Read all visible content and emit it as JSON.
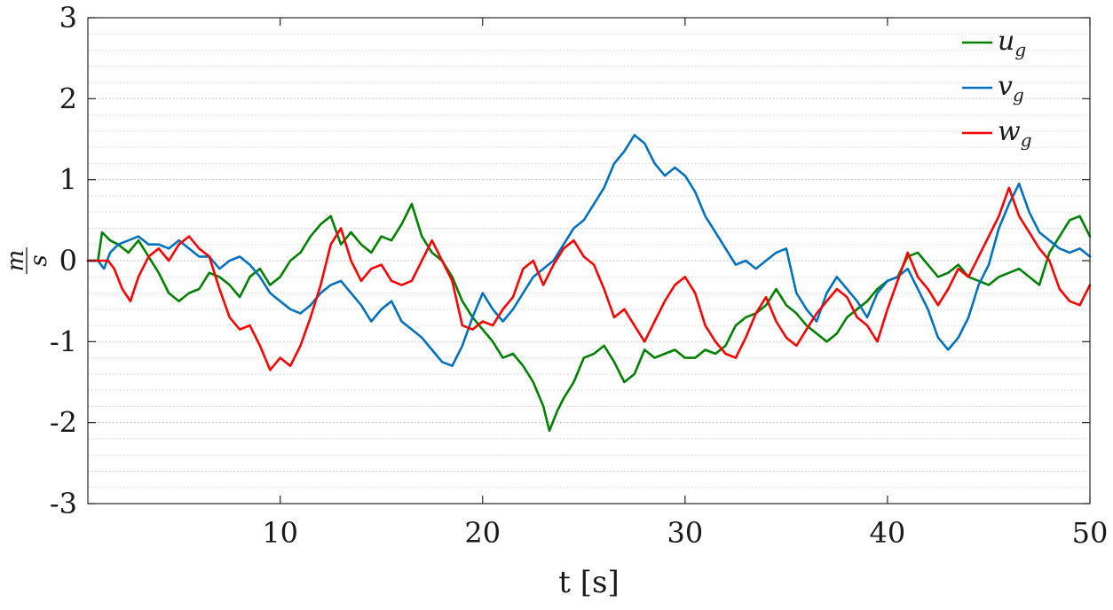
{
  "chart_data": {
    "type": "line",
    "xlabel": "t [s]",
    "ylabel_numerator": "m",
    "ylabel_denominator": "s",
    "xlim": [
      0.5,
      50
    ],
    "ylim": [
      -3,
      3
    ],
    "x_ticks": [
      10,
      20,
      30,
      40,
      50
    ],
    "x_tick_labels": [
      "10",
      "20",
      "30",
      "40",
      "50"
    ],
    "y_ticks": [
      -3,
      -2,
      -1,
      0,
      1,
      2,
      3
    ],
    "y_tick_labels": [
      "-3",
      "-2",
      "-1",
      "0",
      "1",
      "2",
      "3"
    ],
    "grid": "horizontal dotted (major and minor)",
    "legend_position": "top-right",
    "series": [
      {
        "name": "ug",
        "name_main": "u",
        "name_sub": "g",
        "color": "#008000",
        "points": [
          [
            0.5,
            0
          ],
          [
            1,
            0
          ],
          [
            1.2,
            0.35
          ],
          [
            1.6,
            0.25
          ],
          [
            2,
            0.2
          ],
          [
            2.5,
            0.1
          ],
          [
            3,
            0.25
          ],
          [
            3.5,
            0.05
          ],
          [
            4,
            -0.15
          ],
          [
            4.5,
            -0.4
          ],
          [
            5,
            -0.5
          ],
          [
            5.5,
            -0.4
          ],
          [
            6,
            -0.35
          ],
          [
            6.5,
            -0.15
          ],
          [
            7,
            -0.2
          ],
          [
            7.5,
            -0.3
          ],
          [
            8,
            -0.45
          ],
          [
            8.5,
            -0.2
          ],
          [
            9,
            -0.1
          ],
          [
            9.5,
            -0.3
          ],
          [
            10,
            -0.2
          ],
          [
            10.5,
            0
          ],
          [
            11,
            0.1
          ],
          [
            11.5,
            0.3
          ],
          [
            12,
            0.45
          ],
          [
            12.5,
            0.55
          ],
          [
            13,
            0.2
          ],
          [
            13.5,
            0.35
          ],
          [
            14,
            0.2
          ],
          [
            14.5,
            0.1
          ],
          [
            15,
            0.3
          ],
          [
            15.5,
            0.25
          ],
          [
            16,
            0.45
          ],
          [
            16.5,
            0.7
          ],
          [
            17,
            0.3
          ],
          [
            17.5,
            0.1
          ],
          [
            18,
            0
          ],
          [
            18.5,
            -0.2
          ],
          [
            19,
            -0.5
          ],
          [
            19.5,
            -0.7
          ],
          [
            20,
            -0.85
          ],
          [
            20.5,
            -1.0
          ],
          [
            21,
            -1.2
          ],
          [
            21.5,
            -1.15
          ],
          [
            22,
            -1.3
          ],
          [
            22.5,
            -1.5
          ],
          [
            23,
            -1.8
          ],
          [
            23.3,
            -2.1
          ],
          [
            23.7,
            -1.85
          ],
          [
            24,
            -1.7
          ],
          [
            24.5,
            -1.5
          ],
          [
            25,
            -1.2
          ],
          [
            25.5,
            -1.15
          ],
          [
            26,
            -1.05
          ],
          [
            26.5,
            -1.25
          ],
          [
            27,
            -1.5
          ],
          [
            27.5,
            -1.4
          ],
          [
            28,
            -1.1
          ],
          [
            28.5,
            -1.2
          ],
          [
            29,
            -1.15
          ],
          [
            29.5,
            -1.1
          ],
          [
            30,
            -1.2
          ],
          [
            30.5,
            -1.2
          ],
          [
            31,
            -1.1
          ],
          [
            31.5,
            -1.15
          ],
          [
            32,
            -1.05
          ],
          [
            32.5,
            -0.8
          ],
          [
            33,
            -0.7
          ],
          [
            33.5,
            -0.65
          ],
          [
            34,
            -0.55
          ],
          [
            34.5,
            -0.35
          ],
          [
            35,
            -0.55
          ],
          [
            35.5,
            -0.65
          ],
          [
            36,
            -0.8
          ],
          [
            36.5,
            -0.9
          ],
          [
            37,
            -1.0
          ],
          [
            37.5,
            -0.9
          ],
          [
            38,
            -0.7
          ],
          [
            38.5,
            -0.6
          ],
          [
            39,
            -0.5
          ],
          [
            39.5,
            -0.35
          ],
          [
            40,
            -0.25
          ],
          [
            40.5,
            -0.2
          ],
          [
            41,
            0.05
          ],
          [
            41.5,
            0.1
          ],
          [
            42,
            -0.05
          ],
          [
            42.5,
            -0.2
          ],
          [
            43,
            -0.15
          ],
          [
            43.5,
            -0.05
          ],
          [
            44,
            -0.2
          ],
          [
            44.5,
            -0.25
          ],
          [
            45,
            -0.3
          ],
          [
            45.5,
            -0.2
          ],
          [
            46,
            -0.15
          ],
          [
            46.5,
            -0.1
          ],
          [
            47,
            -0.2
          ],
          [
            47.5,
            -0.3
          ],
          [
            48,
            0.1
          ],
          [
            48.5,
            0.3
          ],
          [
            49,
            0.5
          ],
          [
            49.5,
            0.55
          ],
          [
            50,
            0.3
          ]
        ]
      },
      {
        "name": "vg",
        "name_main": "v",
        "name_sub": "g",
        "color": "#0072BD",
        "points": [
          [
            0.5,
            0
          ],
          [
            1,
            0
          ],
          [
            1.3,
            -0.1
          ],
          [
            1.6,
            0.1
          ],
          [
            2,
            0.2
          ],
          [
            2.5,
            0.25
          ],
          [
            3,
            0.3
          ],
          [
            3.5,
            0.2
          ],
          [
            4,
            0.2
          ],
          [
            4.5,
            0.15
          ],
          [
            5,
            0.25
          ],
          [
            5.5,
            0.15
          ],
          [
            6,
            0.05
          ],
          [
            6.5,
            0.05
          ],
          [
            7,
            -0.1
          ],
          [
            7.5,
            0
          ],
          [
            8,
            0.05
          ],
          [
            8.5,
            -0.05
          ],
          [
            9,
            -0.2
          ],
          [
            9.5,
            -0.4
          ],
          [
            10,
            -0.5
          ],
          [
            10.5,
            -0.6
          ],
          [
            11,
            -0.65
          ],
          [
            11.5,
            -0.55
          ],
          [
            12,
            -0.4
          ],
          [
            12.5,
            -0.3
          ],
          [
            13,
            -0.25
          ],
          [
            13.5,
            -0.4
          ],
          [
            14,
            -0.55
          ],
          [
            14.5,
            -0.75
          ],
          [
            15,
            -0.6
          ],
          [
            15.5,
            -0.5
          ],
          [
            16,
            -0.75
          ],
          [
            16.5,
            -0.85
          ],
          [
            17,
            -0.95
          ],
          [
            17.5,
            -1.1
          ],
          [
            18,
            -1.25
          ],
          [
            18.5,
            -1.3
          ],
          [
            19,
            -1.05
          ],
          [
            19.5,
            -0.7
          ],
          [
            20,
            -0.4
          ],
          [
            20.5,
            -0.6
          ],
          [
            21,
            -0.75
          ],
          [
            21.5,
            -0.6
          ],
          [
            22,
            -0.4
          ],
          [
            22.5,
            -0.2
          ],
          [
            23,
            -0.1
          ],
          [
            23.5,
            0
          ],
          [
            24,
            0.2
          ],
          [
            24.5,
            0.4
          ],
          [
            25,
            0.5
          ],
          [
            25.5,
            0.7
          ],
          [
            26,
            0.9
          ],
          [
            26.5,
            1.2
          ],
          [
            27,
            1.35
          ],
          [
            27.5,
            1.55
          ],
          [
            28,
            1.45
          ],
          [
            28.5,
            1.2
          ],
          [
            29,
            1.05
          ],
          [
            29.5,
            1.15
          ],
          [
            30,
            1.05
          ],
          [
            30.5,
            0.85
          ],
          [
            31,
            0.55
          ],
          [
            31.5,
            0.35
          ],
          [
            32,
            0.15
          ],
          [
            32.5,
            -0.05
          ],
          [
            33,
            0
          ],
          [
            33.5,
            -0.1
          ],
          [
            34,
            0
          ],
          [
            34.5,
            0.1
          ],
          [
            35,
            0.15
          ],
          [
            35.5,
            -0.4
          ],
          [
            36,
            -0.6
          ],
          [
            36.5,
            -0.75
          ],
          [
            37,
            -0.4
          ],
          [
            37.5,
            -0.2
          ],
          [
            38,
            -0.35
          ],
          [
            38.5,
            -0.5
          ],
          [
            39,
            -0.7
          ],
          [
            39.5,
            -0.4
          ],
          [
            40,
            -0.25
          ],
          [
            40.5,
            -0.2
          ],
          [
            41,
            -0.1
          ],
          [
            41.5,
            -0.35
          ],
          [
            42,
            -0.6
          ],
          [
            42.5,
            -0.95
          ],
          [
            43,
            -1.1
          ],
          [
            43.5,
            -0.95
          ],
          [
            44,
            -0.7
          ],
          [
            44.5,
            -0.3
          ],
          [
            45,
            -0.05
          ],
          [
            45.5,
            0.4
          ],
          [
            46,
            0.7
          ],
          [
            46.5,
            0.95
          ],
          [
            47,
            0.6
          ],
          [
            47.5,
            0.35
          ],
          [
            48,
            0.25
          ],
          [
            48.5,
            0.15
          ],
          [
            49,
            0.1
          ],
          [
            49.5,
            0.15
          ],
          [
            50,
            0.05
          ]
        ]
      },
      {
        "name": "wg",
        "name_main": "w",
        "name_sub": "g",
        "color": "#FF0000",
        "points": [
          [
            0.5,
            0
          ],
          [
            1.5,
            0
          ],
          [
            1.8,
            -0.1
          ],
          [
            2.2,
            -0.35
          ],
          [
            2.6,
            -0.5
          ],
          [
            3,
            -0.2
          ],
          [
            3.5,
            0.05
          ],
          [
            4,
            0.15
          ],
          [
            4.5,
            0
          ],
          [
            5,
            0.2
          ],
          [
            5.5,
            0.3
          ],
          [
            6,
            0.15
          ],
          [
            6.5,
            0.05
          ],
          [
            7,
            -0.35
          ],
          [
            7.5,
            -0.7
          ],
          [
            8,
            -0.85
          ],
          [
            8.5,
            -0.8
          ],
          [
            9,
            -1.05
          ],
          [
            9.5,
            -1.35
          ],
          [
            10,
            -1.2
          ],
          [
            10.5,
            -1.3
          ],
          [
            11,
            -1.05
          ],
          [
            11.5,
            -0.7
          ],
          [
            12,
            -0.3
          ],
          [
            12.5,
            0.2
          ],
          [
            13,
            0.4
          ],
          [
            13.5,
            0
          ],
          [
            14,
            -0.25
          ],
          [
            14.5,
            -0.1
          ],
          [
            15,
            -0.05
          ],
          [
            15.5,
            -0.25
          ],
          [
            16,
            -0.3
          ],
          [
            16.5,
            -0.25
          ],
          [
            17,
            0
          ],
          [
            17.5,
            0.25
          ],
          [
            18,
            0
          ],
          [
            18.5,
            -0.25
          ],
          [
            19,
            -0.8
          ],
          [
            19.5,
            -0.85
          ],
          [
            20,
            -0.75
          ],
          [
            20.5,
            -0.8
          ],
          [
            21,
            -0.6
          ],
          [
            21.5,
            -0.45
          ],
          [
            22,
            -0.1
          ],
          [
            22.5,
            0
          ],
          [
            23,
            -0.3
          ],
          [
            23.5,
            -0.05
          ],
          [
            24,
            0.15
          ],
          [
            24.5,
            0.25
          ],
          [
            25,
            0.05
          ],
          [
            25.5,
            -0.05
          ],
          [
            26,
            -0.35
          ],
          [
            26.5,
            -0.7
          ],
          [
            27,
            -0.6
          ],
          [
            27.5,
            -0.8
          ],
          [
            28,
            -1.0
          ],
          [
            28.5,
            -0.75
          ],
          [
            29,
            -0.5
          ],
          [
            29.5,
            -0.3
          ],
          [
            30,
            -0.2
          ],
          [
            30.5,
            -0.4
          ],
          [
            31,
            -0.8
          ],
          [
            31.5,
            -1.0
          ],
          [
            32,
            -1.15
          ],
          [
            32.5,
            -1.2
          ],
          [
            33,
            -0.95
          ],
          [
            33.5,
            -0.65
          ],
          [
            34,
            -0.45
          ],
          [
            34.5,
            -0.75
          ],
          [
            35,
            -0.95
          ],
          [
            35.5,
            -1.05
          ],
          [
            36,
            -0.85
          ],
          [
            36.5,
            -0.65
          ],
          [
            37,
            -0.5
          ],
          [
            37.5,
            -0.35
          ],
          [
            38,
            -0.45
          ],
          [
            38.5,
            -0.7
          ],
          [
            39,
            -0.8
          ],
          [
            39.5,
            -1.0
          ],
          [
            40,
            -0.6
          ],
          [
            40.5,
            -0.25
          ],
          [
            41,
            0.1
          ],
          [
            41.5,
            -0.2
          ],
          [
            42,
            -0.35
          ],
          [
            42.5,
            -0.55
          ],
          [
            43,
            -0.35
          ],
          [
            43.5,
            -0.1
          ],
          [
            44,
            -0.2
          ],
          [
            44.5,
            0.05
          ],
          [
            45,
            0.3
          ],
          [
            45.5,
            0.55
          ],
          [
            46,
            0.9
          ],
          [
            46.5,
            0.55
          ],
          [
            47,
            0.35
          ],
          [
            47.5,
            0.15
          ],
          [
            48,
            0
          ],
          [
            48.5,
            -0.35
          ],
          [
            49,
            -0.5
          ],
          [
            49.5,
            -0.55
          ],
          [
            50,
            -0.3
          ]
        ]
      }
    ]
  }
}
